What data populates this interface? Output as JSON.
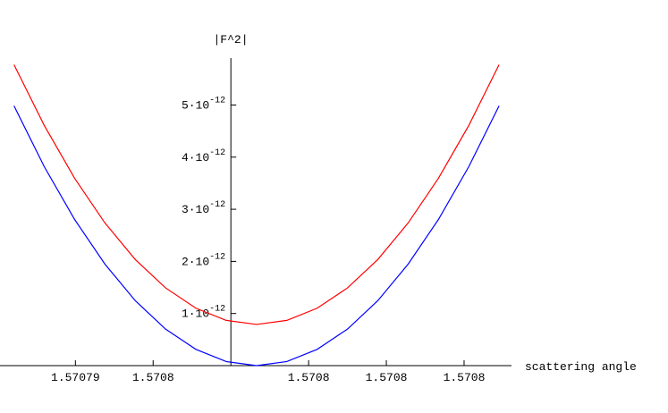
{
  "chart_data": {
    "type": "line",
    "x_label": "scattering angle",
    "y_label": "|F^2|",
    "x": [
      1.57079321,
      1.5707936,
      1.57079399,
      1.57079438,
      1.57079477,
      1.57079516,
      1.57079555,
      1.57079594,
      1.57079633,
      1.57079672,
      1.57079711,
      1.5707975,
      1.57079789,
      1.57079828,
      1.57079867,
      1.57079906,
      1.57079945
    ],
    "series": [
      {
        "color": "#ff0000",
        "values": [
          5.774e-12,
          4.606e-12,
          3.594e-12,
          2.737e-12,
          2.036e-12,
          1.491e-12,
          1.102e-12,
          8.68e-13,
          7.9e-13,
          8.68e-13,
          1.102e-12,
          1.491e-12,
          2.036e-12,
          2.737e-12,
          3.594e-12,
          4.606e-12,
          5.774e-12
        ]
      },
      {
        "color": "#0000ff",
        "values": [
          4.984e-12,
          3.816e-12,
          2.804e-12,
          1.947e-12,
          1.246e-12,
          7.01e-13,
          3.12e-13,
          7.8e-14,
          0,
          7.8e-14,
          3.12e-13,
          7.01e-13,
          1.246e-12,
          1.947e-12,
          2.804e-12,
          3.816e-12,
          4.984e-12
        ]
      }
    ],
    "xlim": [
      1.57079303,
      1.57079961
    ],
    "ylim": [
      0,
      5.9e-12
    ],
    "axes_origin": [
      1.570796,
      0
    ],
    "xticks": [
      {
        "value": 1.570794,
        "label": "1.57079"
      },
      {
        "value": 1.570795,
        "label": "1.5708"
      },
      {
        "value": 1.570797,
        "label": "1.5708"
      },
      {
        "value": 1.570798,
        "label": "1.5708"
      },
      {
        "value": 1.570799,
        "label": "1.5708"
      }
    ],
    "yticks": [
      {
        "value": 1e-12,
        "label": "1·10",
        "exponent": "-12"
      },
      {
        "value": 2e-12,
        "label": "2·10",
        "exponent": "-12"
      },
      {
        "value": 3e-12,
        "label": "3·10",
        "exponent": "-12"
      },
      {
        "value": 4e-12,
        "label": "4·10",
        "exponent": "-12"
      },
      {
        "value": 5e-12,
        "label": "5·10",
        "exponent": "-12"
      }
    ]
  }
}
